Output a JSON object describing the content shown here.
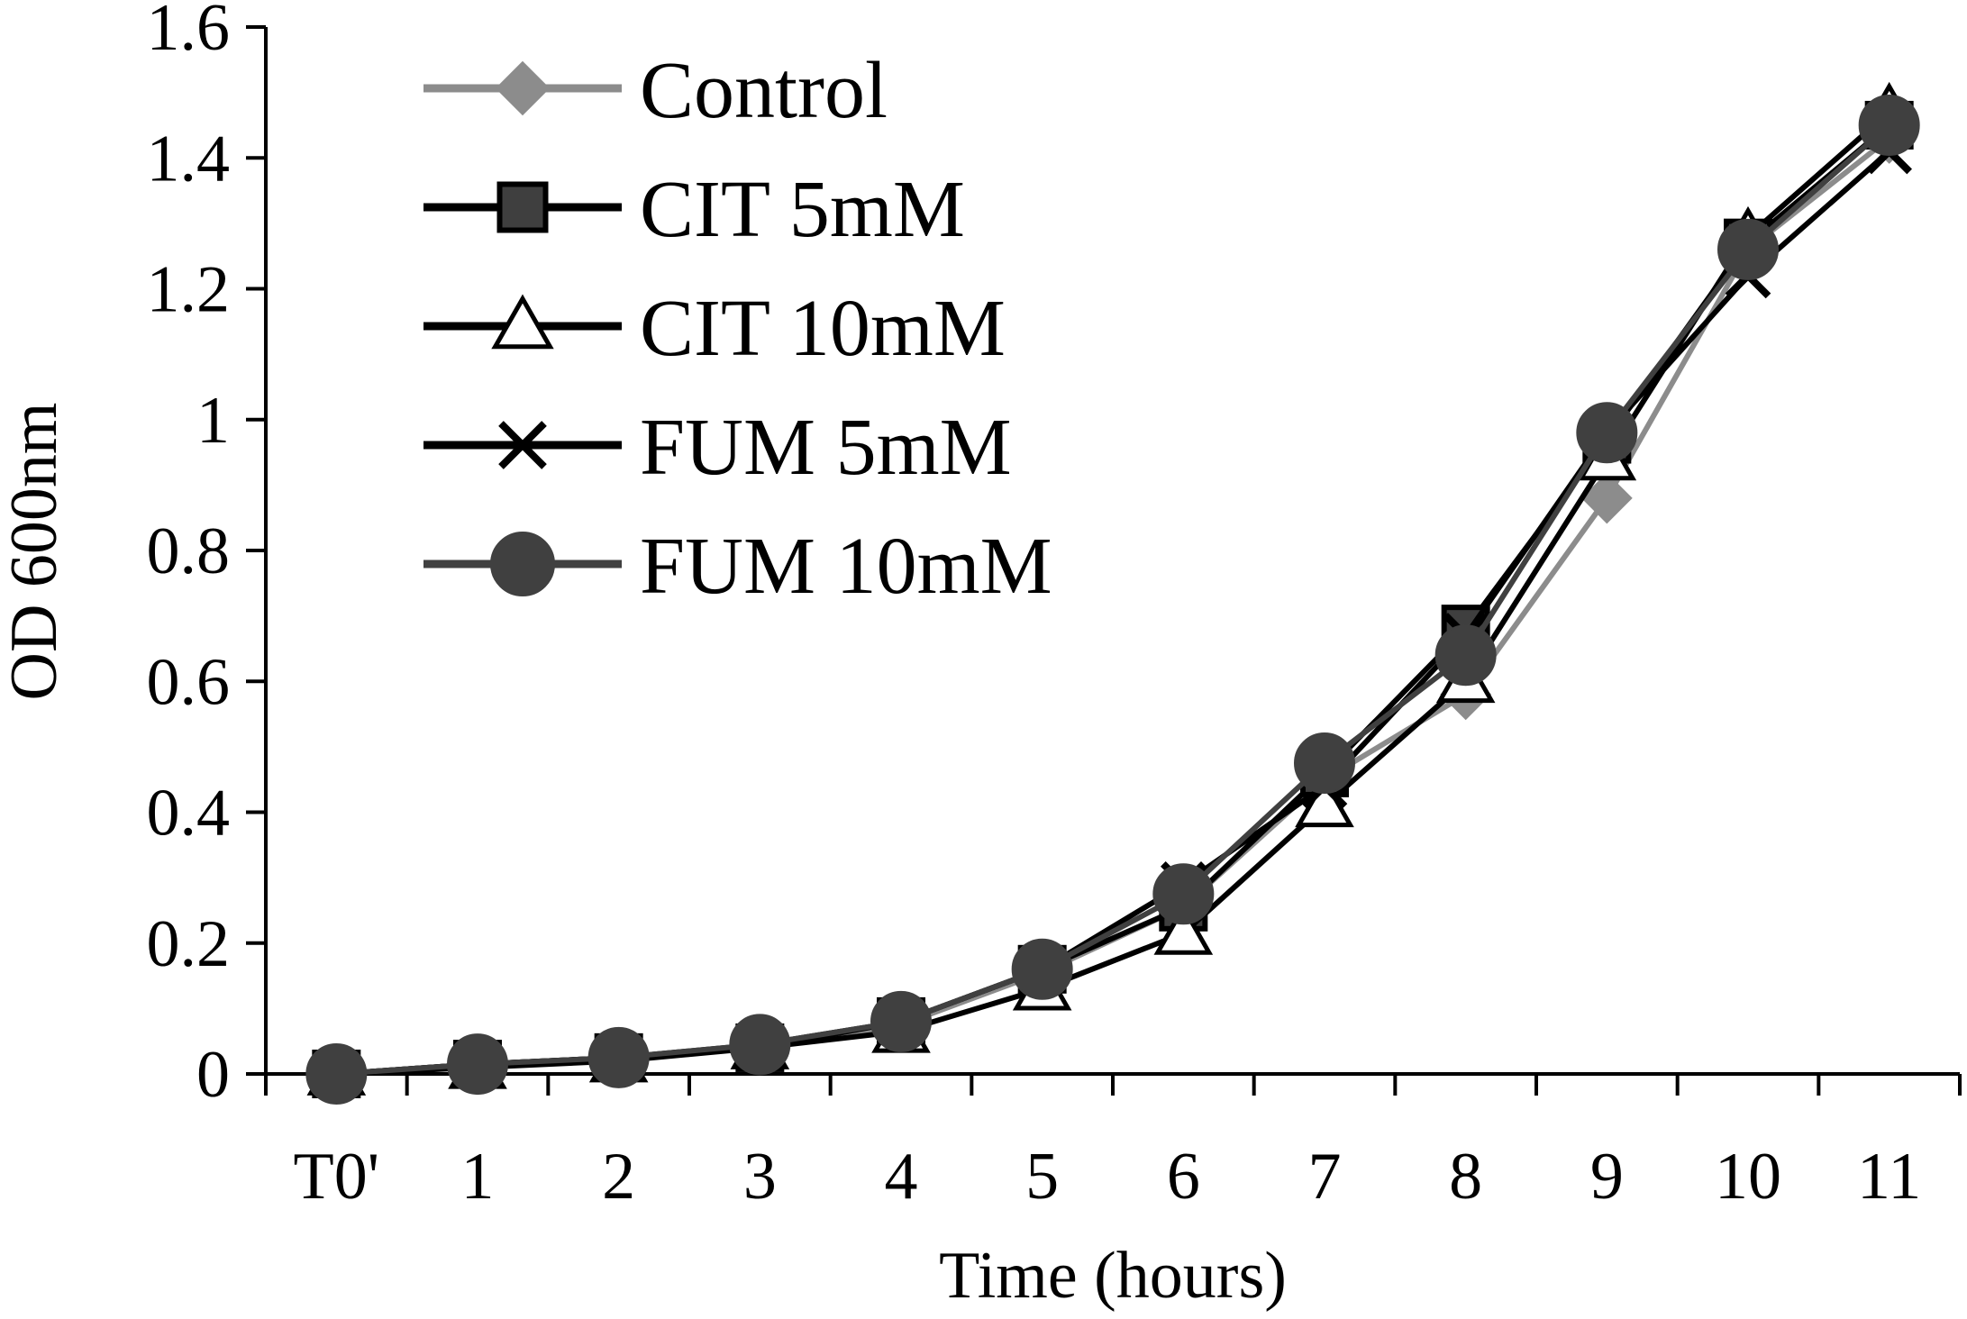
{
  "chart_data": {
    "type": "line",
    "title": "",
    "xlabel": "Time (hours)",
    "ylabel": "OD 600nm",
    "categories": [
      "T0'",
      "1",
      "2",
      "3",
      "4",
      "5",
      "6",
      "7",
      "8",
      "9",
      "10",
      "11"
    ],
    "ylim": [
      0,
      1.6
    ],
    "yticks": [
      "0",
      "0.2",
      "0.4",
      "0.6",
      "0.8",
      "1",
      "1.2",
      "1.4",
      "1.6"
    ],
    "ytick_values": [
      0,
      0.2,
      0.4,
      0.6,
      0.8,
      1.0,
      1.2,
      1.4,
      1.6
    ],
    "grid": false,
    "legend_position": "top-left",
    "series": [
      {
        "name": "Control",
        "marker": "diamond",
        "color": "#8c8c8c",
        "values": [
          0.0,
          0.015,
          0.025,
          0.04,
          0.075,
          0.155,
          0.255,
          0.45,
          0.58,
          0.88,
          1.26,
          1.43
        ]
      },
      {
        "name": "CIT 5mM",
        "marker": "square",
        "color": "#000000",
        "fill": "#3f3f3f",
        "values": [
          0.0,
          0.015,
          0.025,
          0.04,
          0.08,
          0.16,
          0.255,
          0.46,
          0.68,
          0.97,
          1.27,
          1.45
        ]
      },
      {
        "name": "CIT 10mM",
        "marker": "triangle",
        "color": "#000000",
        "fill": "#ffffff",
        "values": [
          0.0,
          0.01,
          0.02,
          0.04,
          0.065,
          0.13,
          0.215,
          0.41,
          0.6,
          0.94,
          1.28,
          1.47
        ]
      },
      {
        "name": "FUM 5mM",
        "marker": "x",
        "color": "#000000",
        "values": [
          0.0,
          0.015,
          0.025,
          0.045,
          0.08,
          0.16,
          0.29,
          0.44,
          0.67,
          0.98,
          1.22,
          1.41
        ]
      },
      {
        "name": "FUM 10mM",
        "marker": "circle",
        "color": "#404040",
        "fill": "#404040",
        "values": [
          0.0,
          0.015,
          0.025,
          0.045,
          0.08,
          0.16,
          0.275,
          0.475,
          0.64,
          0.98,
          1.26,
          1.45
        ]
      }
    ]
  }
}
